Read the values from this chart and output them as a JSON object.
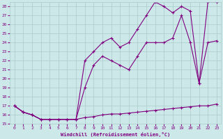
{
  "xlabel": "Windchill (Refroidissement éolien,°C)",
  "bg_color": "#cce8e8",
  "grid_color": "#aacaca",
  "line_color": "#800080",
  "xlim": [
    -0.5,
    23.5
  ],
  "ylim": [
    15,
    28.5
  ],
  "xticks": [
    0,
    1,
    2,
    3,
    4,
    5,
    6,
    7,
    8,
    9,
    10,
    11,
    12,
    13,
    14,
    15,
    16,
    17,
    18,
    19,
    20,
    21,
    22,
    23
  ],
  "yticks": [
    15,
    16,
    17,
    18,
    19,
    20,
    21,
    22,
    23,
    24,
    25,
    26,
    27,
    28
  ],
  "line1_x": [
    0,
    1,
    2,
    3,
    4,
    5,
    6,
    7,
    8,
    9,
    10,
    11,
    12,
    13,
    14,
    15,
    16,
    17,
    18,
    19,
    20,
    21,
    22,
    23
  ],
  "line1_y": [
    17.0,
    16.3,
    16.0,
    15.5,
    15.5,
    15.5,
    15.5,
    15.5,
    15.7,
    15.8,
    16.0,
    16.1,
    16.1,
    16.2,
    16.3,
    16.4,
    16.5,
    16.6,
    16.7,
    16.8,
    16.9,
    17.0,
    17.0,
    17.2
  ],
  "line2_x": [
    0,
    1,
    2,
    3,
    4,
    5,
    6,
    7,
    8,
    9,
    10,
    11,
    12,
    13,
    14,
    15,
    16,
    17,
    18,
    19,
    20,
    21,
    22,
    23
  ],
  "line2_y": [
    17.0,
    16.3,
    16.0,
    15.5,
    15.5,
    15.5,
    15.5,
    15.5,
    19.0,
    21.5,
    22.5,
    22.0,
    21.5,
    21.0,
    22.5,
    24.0,
    24.0,
    24.0,
    24.5,
    27.0,
    24.0,
    19.5,
    24.0,
    24.2
  ],
  "line3_x": [
    0,
    1,
    2,
    3,
    4,
    5,
    6,
    7,
    8,
    9,
    10,
    11,
    12,
    13,
    14,
    15,
    16,
    17,
    18,
    19,
    20,
    21,
    22,
    23
  ],
  "line3_y": [
    17.0,
    16.3,
    16.0,
    15.5,
    15.5,
    15.5,
    15.5,
    15.5,
    22.0,
    23.0,
    24.0,
    24.5,
    23.5,
    24.0,
    25.5,
    27.0,
    28.5,
    28.0,
    27.3,
    28.0,
    27.5,
    19.5,
    28.5,
    28.5
  ]
}
